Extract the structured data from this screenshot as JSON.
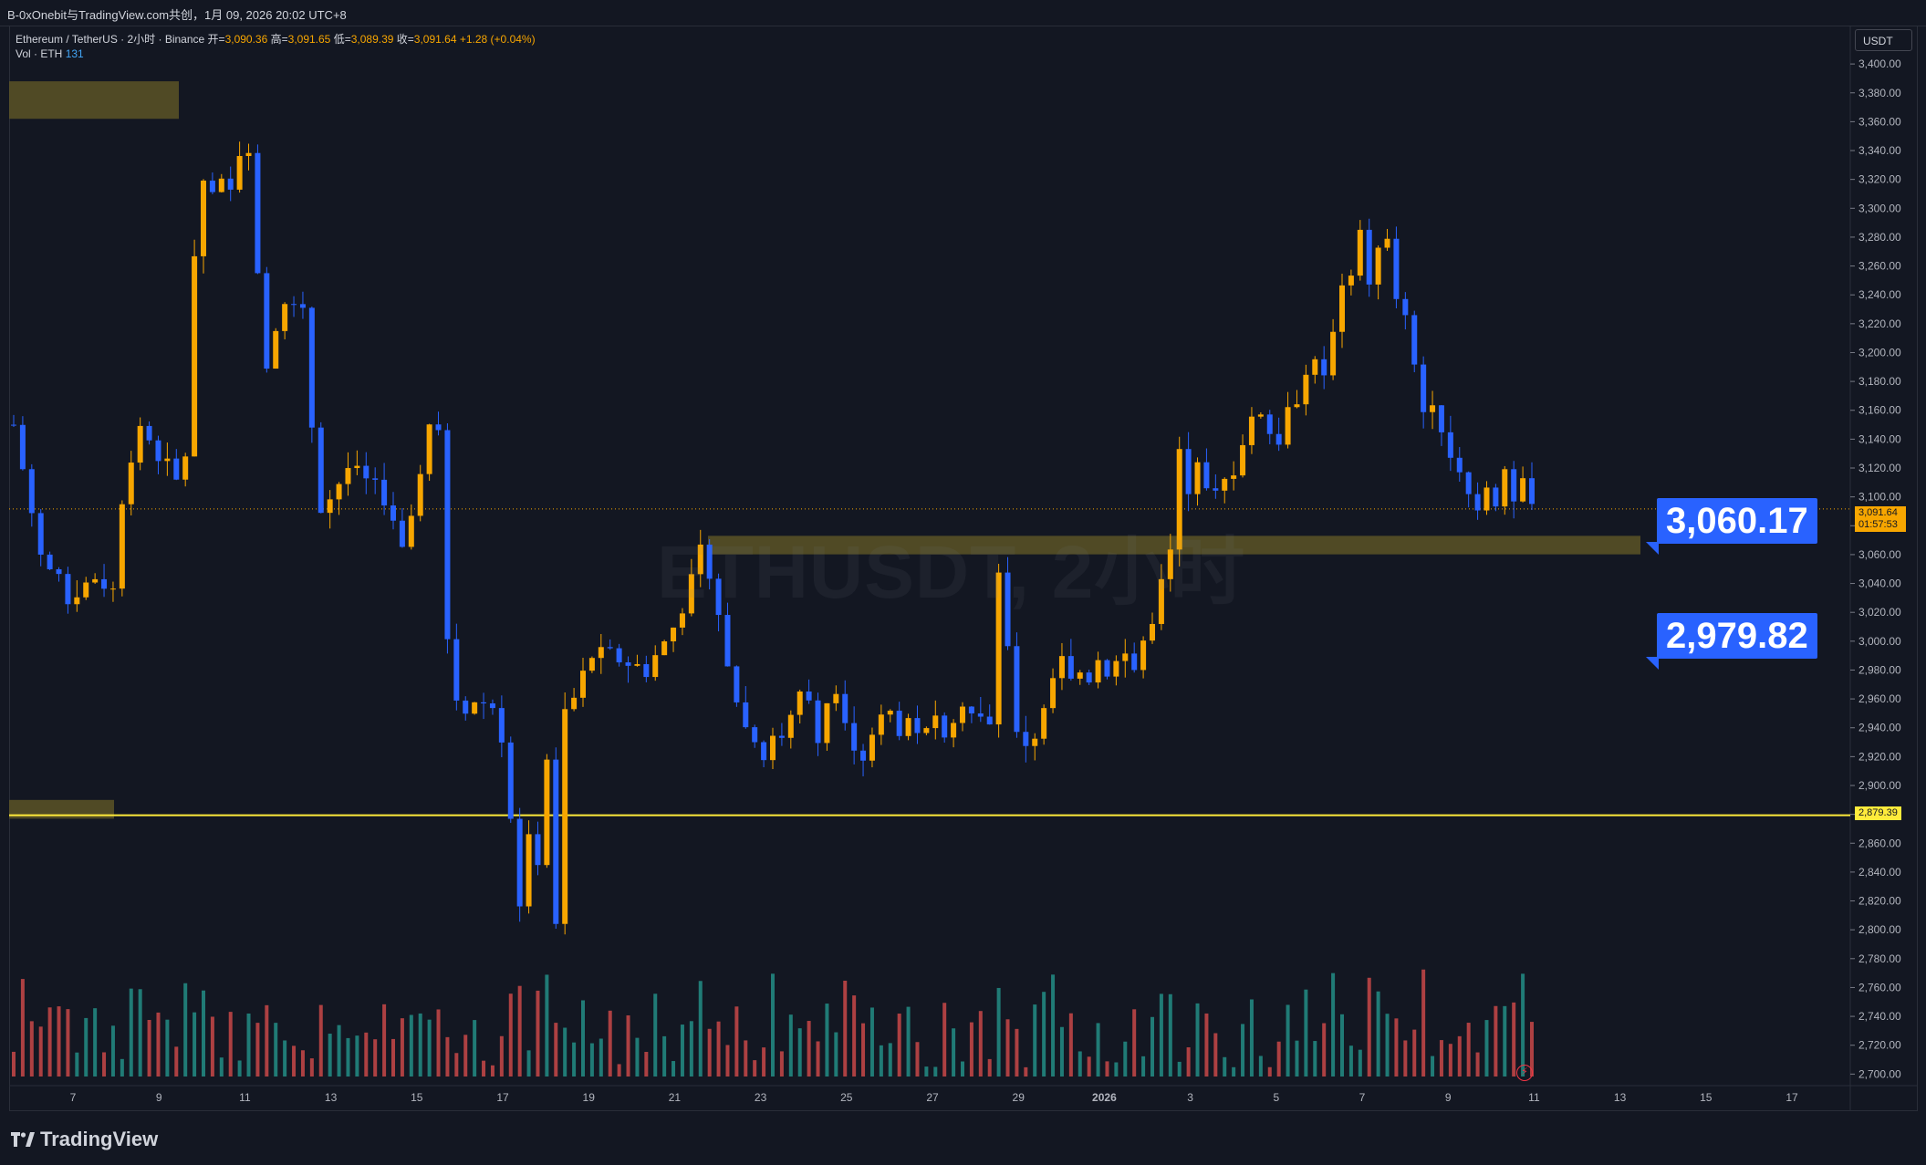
{
  "header": {
    "title": "B-0xOnebit与TradingView.com共创，1月 09, 2026 20:02 UTC+8"
  },
  "legend": {
    "symbol": "Ethereum / TetherUS · 2小时 · Binance",
    "open_label": "开=",
    "open_value": "3,090.36",
    "high_label": "高=",
    "high_value": "3,091.65",
    "low_label": "低=",
    "low_value": "3,089.39",
    "close_label": "收=",
    "close_value": "3,091.64",
    "change": "+1.28 (+0.04%)",
    "vol_label": "Vol · ETH",
    "vol_value": "131"
  },
  "watermark": "ETHUSDT, 2小时",
  "currency": "USDT",
  "callouts": {
    "upper": "3,060.17",
    "lower": "2,979.82"
  },
  "price_tags": {
    "last_price": "3,091.64",
    "countdown": "01:57:53",
    "horizontal_line": "2,879.39"
  },
  "branding": {
    "logo_text": "TradingView"
  },
  "colors": {
    "background": "#131722",
    "up": "#f7a600",
    "down": "#2962ff",
    "zone": "#5c5426",
    "hline": "#ffeb3b",
    "callout": "#2962ff",
    "volume_up": "#26a69a",
    "volume_down": "#ef5350"
  },
  "chart_data": {
    "type": "candlestick",
    "x_tick_labels": [
      "7",
      "9",
      "11",
      "13",
      "15",
      "17",
      "19",
      "21",
      "23",
      "25",
      "27",
      "29",
      "2026",
      "3",
      "5",
      "7",
      "9",
      "11",
      "13",
      "15",
      "17"
    ],
    "y_tick_labels": [
      "3,400.00",
      "3,380.00",
      "3,360.00",
      "3,340.00",
      "3,320.00",
      "3,300.00",
      "3,280.00",
      "3,260.00",
      "3,240.00",
      "3,220.00",
      "3,200.00",
      "3,180.00",
      "3,160.00",
      "3,140.00",
      "3,120.00",
      "3,100.00",
      "3,080.00",
      "3,060.00",
      "3,040.00",
      "3,020.00",
      "3,000.00",
      "2,980.00",
      "2,960.00",
      "2,940.00",
      "2,920.00",
      "2,900.00",
      "2,880.00",
      "2,860.00",
      "2,840.00",
      "2,820.00",
      "2,800.00",
      "2,780.00",
      "2,760.00",
      "2,740.00",
      "2,720.00",
      "2,700.00"
    ],
    "ylim": [
      2692,
      3426
    ],
    "close_path": [
      [
        0,
        3150
      ],
      [
        3,
        3060
      ],
      [
        6,
        3030
      ],
      [
        9,
        3045
      ],
      [
        11,
        3035
      ],
      [
        12,
        3100
      ],
      [
        14,
        3150
      ],
      [
        16,
        3130
      ],
      [
        18,
        3110
      ],
      [
        19,
        3130
      ],
      [
        20.5,
        3340
      ],
      [
        21.5,
        3300
      ],
      [
        22.5,
        3320
      ],
      [
        23.5,
        3310
      ],
      [
        24.5,
        3310
      ],
      [
        25.5,
        3370
      ],
      [
        26.5,
        3320
      ],
      [
        27.5,
        3200
      ],
      [
        28.5,
        3190
      ],
      [
        29.5,
        3250
      ],
      [
        30.5,
        3220
      ],
      [
        31.5,
        3240
      ],
      [
        32.5,
        3210
      ],
      [
        33.5,
        3090
      ],
      [
        35,
        3100
      ],
      [
        37,
        3120
      ],
      [
        39,
        3110
      ],
      [
        41,
        3100
      ],
      [
        43,
        3060
      ],
      [
        44,
        3080
      ],
      [
        45,
        3120
      ],
      [
        46,
        3150
      ],
      [
        47,
        3150
      ],
      [
        48,
        3000
      ],
      [
        49,
        2960
      ],
      [
        50,
        2950
      ],
      [
        51,
        2960
      ],
      [
        53,
        2955
      ],
      [
        54,
        2935
      ],
      [
        55,
        2880
      ],
      [
        56,
        2820
      ],
      [
        57,
        2860
      ],
      [
        58,
        2850
      ],
      [
        59,
        2920
      ],
      [
        60,
        2800
      ],
      [
        61,
        2950
      ],
      [
        62,
        2960
      ],
      [
        63,
        2975
      ],
      [
        64,
        2990
      ],
      [
        66,
        2990
      ],
      [
        68,
        2985
      ],
      [
        70,
        2980
      ],
      [
        71,
        2990
      ],
      [
        73,
        3010
      ],
      [
        75,
        3040
      ],
      [
        76,
        3060
      ],
      [
        77,
        3050
      ],
      [
        78,
        3020
      ],
      [
        79,
        2980
      ],
      [
        80,
        2960
      ],
      [
        81,
        2940
      ],
      [
        82,
        2935
      ],
      [
        83,
        2920
      ],
      [
        84,
        2930
      ],
      [
        85,
        2935
      ],
      [
        86,
        2945
      ],
      [
        87,
        2960
      ],
      [
        88,
        2955
      ],
      [
        89,
        2935
      ],
      [
        90,
        2960
      ],
      [
        91,
        2970
      ],
      [
        92,
        2950
      ],
      [
        93,
        2930
      ],
      [
        94,
        2920
      ],
      [
        95,
        2930
      ],
      [
        96,
        2945
      ],
      [
        97,
        2950
      ],
      [
        98,
        2940
      ],
      [
        99,
        2945
      ],
      [
        100,
        2940
      ],
      [
        101,
        2935
      ],
      [
        102,
        2945
      ],
      [
        103,
        2940
      ],
      [
        104,
        2950
      ],
      [
        105,
        2960
      ],
      [
        106,
        2950
      ],
      [
        107,
        2945
      ],
      [
        108,
        2940
      ],
      [
        109,
        3050
      ],
      [
        110,
        2990
      ],
      [
        111,
        2940
      ],
      [
        112,
        2930
      ],
      [
        113,
        2935
      ],
      [
        114,
        2950
      ],
      [
        115,
        2970
      ],
      [
        116,
        2985
      ],
      [
        117,
        2970
      ],
      [
        118,
        2980
      ],
      [
        119,
        2975
      ],
      [
        120,
        2990
      ],
      [
        121,
        2980
      ],
      [
        122,
        2985
      ],
      [
        123,
        2990
      ],
      [
        124,
        2980
      ],
      [
        125,
        3000
      ],
      [
        126,
        3010
      ],
      [
        127,
        3040
      ],
      [
        128,
        3060
      ],
      [
        129,
        3130
      ],
      [
        130,
        3100
      ],
      [
        131,
        3120
      ],
      [
        132,
        3110
      ],
      [
        133,
        3100
      ],
      [
        134,
        3110
      ],
      [
        135,
        3120
      ],
      [
        136,
        3140
      ],
      [
        137,
        3150
      ],
      [
        138,
        3160
      ],
      [
        139,
        3145
      ],
      [
        140,
        3140
      ],
      [
        141,
        3160
      ],
      [
        142,
        3170
      ],
      [
        143,
        3190
      ],
      [
        144,
        3200
      ],
      [
        145,
        3180
      ],
      [
        146,
        3220
      ],
      [
        147,
        3240
      ],
      [
        148,
        3260
      ],
      [
        149,
        3280
      ],
      [
        150,
        3250
      ],
      [
        151,
        3270
      ],
      [
        152,
        3280
      ],
      [
        153,
        3240
      ],
      [
        154,
        3220
      ],
      [
        155,
        3190
      ],
      [
        156,
        3160
      ],
      [
        157,
        3170
      ],
      [
        158,
        3150
      ],
      [
        159,
        3130
      ],
      [
        160,
        3120
      ],
      [
        161,
        3105
      ],
      [
        162,
        3090
      ],
      [
        163,
        3110
      ],
      [
        164,
        3100
      ],
      [
        165,
        3120
      ],
      [
        166,
        3090
      ],
      [
        167,
        3110
      ],
      [
        168,
        3092
      ]
    ],
    "volume_note": "volume histogram per candle at bottom",
    "horizontal_level": 2879.39,
    "last_price": 3091.64,
    "zones": [
      {
        "from": 3060.17,
        "to": 3073
      },
      {
        "from": 3362,
        "to": 3388
      },
      {
        "from": 2877,
        "to": 2890
      }
    ],
    "annotations": [
      "3,060.17",
      "2,979.82"
    ]
  }
}
